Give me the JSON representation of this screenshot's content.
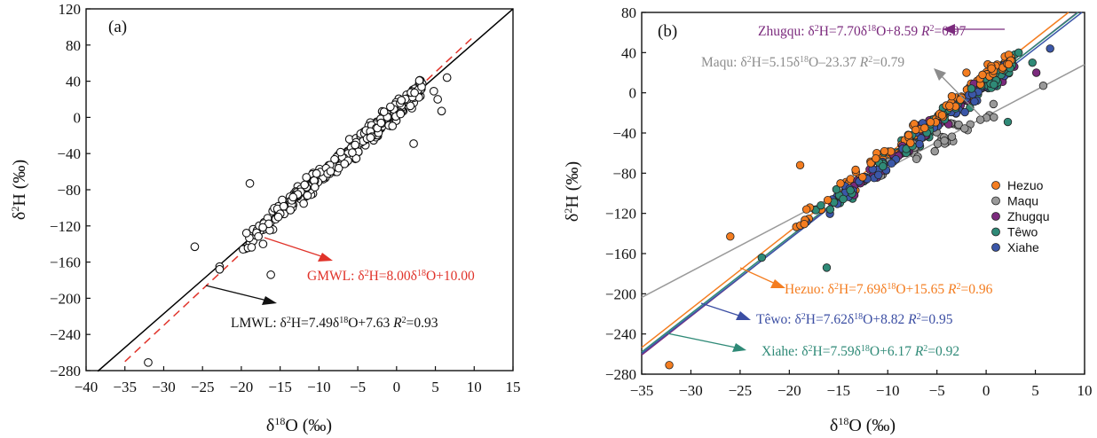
{
  "chart_data": [
    {
      "panel": "(a)",
      "type": "scatter",
      "xlabel": "δ18O (‰)",
      "ylabel": "δ2H (‰)",
      "xlim": [
        -40,
        15
      ],
      "ylim": [
        -280,
        120
      ],
      "xticks": [
        -40,
        -35,
        -30,
        -25,
        -20,
        -15,
        -10,
        -5,
        0,
        5,
        10,
        15
      ],
      "yticks": [
        -280,
        -240,
        -200,
        -160,
        -120,
        -80,
        -40,
        0,
        40,
        80,
        120
      ],
      "grid": false,
      "marker": "open-circle",
      "lines": [
        {
          "key": "gmwl",
          "slope": 8.0,
          "intercept": 10.0,
          "style": "dashed",
          "color": "#e0332a",
          "x_range": [
            -35,
            10
          ]
        },
        {
          "key": "lmwl",
          "slope": 7.49,
          "intercept": 7.63,
          "style": "solid",
          "color": "#000000",
          "x_range": [
            -38.5,
            15
          ]
        }
      ],
      "annotations": {
        "gmwl": {
          "label": "GMWL: ",
          "d": "δ",
          "two": "2",
          "h": "H=8.00",
          "eighteen": "18",
          "rest": "O+10.00",
          "r2": "",
          "color": "#e0332a"
        },
        "lmwl": {
          "label": "LMWL: ",
          "d": "δ",
          "two": "2",
          "h": "H=7.49",
          "eighteen": "18",
          "rest": "O+7.63 ",
          "r": "R",
          "sq": "2",
          "r2": "=0.93",
          "color": "#111111"
        }
      },
      "outliers": [
        [
          -32,
          -271
        ],
        [
          -26,
          -143
        ],
        [
          -22.8,
          -165
        ],
        [
          -22.8,
          -168
        ],
        [
          -18.9,
          -73
        ],
        [
          -16.2,
          -174
        ],
        [
          2.2,
          -29
        ],
        [
          4.8,
          29
        ],
        [
          5.3,
          20
        ],
        [
          5.8,
          7
        ],
        [
          6.5,
          44
        ],
        [
          -17.2,
          -140
        ]
      ],
      "trend": {
        "slope": 7.5,
        "intercept": 8,
        "x_range": [
          -20,
          3.5
        ],
        "n": 330,
        "spread_y": 8
      }
    },
    {
      "panel": "(b)",
      "type": "scatter",
      "xlabel": "δ18O (‰)",
      "ylabel": "δ2H (‰)",
      "xlim": [
        -35,
        10
      ],
      "ylim": [
        -280,
        80
      ],
      "xticks": [
        -35,
        -30,
        -25,
        -20,
        -15,
        -10,
        -5,
        0,
        5,
        10
      ],
      "yticks": [
        -280,
        -240,
        -200,
        -160,
        -120,
        -80,
        -40,
        0,
        40,
        80
      ],
      "grid": false,
      "legend_position": "right-middle",
      "series": [
        {
          "name": "Hezuo",
          "color": "#f47d20",
          "slope": 7.69,
          "intercept": 15.65,
          "n": 110,
          "x_range": [
            -20,
            3
          ]
        },
        {
          "name": "Maqu",
          "color": "#9a9a9a",
          "slope": 5.15,
          "intercept": -23.37,
          "n": 40,
          "x_range": [
            -13,
            1
          ]
        },
        {
          "name": "Zhugqu",
          "color": "#7b2a7d",
          "slope": 7.7,
          "intercept": 8.59,
          "n": 60,
          "x_range": [
            -16,
            3
          ]
        },
        {
          "name": "Têwo",
          "color": "#2f8a77",
          "slope": 7.62,
          "intercept": 8.82,
          "n": 110,
          "x_range": [
            -19,
            3
          ]
        },
        {
          "name": "Xiahe",
          "color": "#3b57a8",
          "slope": 7.59,
          "intercept": 6.17,
          "n": 60,
          "x_range": [
            -19,
            2.5
          ]
        }
      ],
      "outliers": [
        {
          "series": 0,
          "x": -32.2,
          "y": -271
        },
        {
          "series": 0,
          "x": -26,
          "y": -143
        },
        {
          "series": 0,
          "x": -18.9,
          "y": -72
        },
        {
          "series": 0,
          "x": -2,
          "y": 20
        },
        {
          "series": 1,
          "x": 5.8,
          "y": 7
        },
        {
          "series": 3,
          "x": 2.2,
          "y": -29
        },
        {
          "series": 3,
          "x": -16.2,
          "y": -174
        },
        {
          "series": 3,
          "x": -22.8,
          "y": -164
        },
        {
          "series": 3,
          "x": 4.7,
          "y": 30
        },
        {
          "series": 2,
          "x": 5.1,
          "y": 20
        },
        {
          "series": 4,
          "x": 6.5,
          "y": 44
        },
        {
          "series": 3,
          "x": 3.3,
          "y": 40
        }
      ],
      "annotations": [
        {
          "name": "Zhugqu",
          "text": "Zhugqu: ",
          "d": "δ",
          "two": "2",
          "h": "H=7.70",
          "eighteen": "18",
          "rest": "O+8.59 ",
          "r": "R",
          "sq": "2",
          "r2": "=0.97",
          "color": "#7b2a7d"
        },
        {
          "name": "Maqu",
          "text": "Maqu: ",
          "d": "δ",
          "two": "2",
          "h": "H=5.15",
          "eighteen": "18",
          "rest": "O–23.37 ",
          "r": "R",
          "sq": "2",
          "r2": "=0.79",
          "color": "#8c8c8c"
        },
        {
          "name": "Hezuo",
          "text": "Hezuo: ",
          "d": "δ",
          "two": "2",
          "h": "H=7.69",
          "eighteen": "18",
          "rest": "O+15.65 ",
          "r": "R",
          "sq": "2",
          "r2": "=0.96",
          "color": "#f47d20"
        },
        {
          "name": "Têwo",
          "text": "Têwo: ",
          "d": "δ",
          "two": "2",
          "h": "H=7.62",
          "eighteen": "18",
          "rest": "O+8.82 ",
          "r": "R",
          "sq": "2",
          "r2": "=0.95",
          "color": "#3b4ea3"
        },
        {
          "name": "Xiahe",
          "text": "Xiahe: ",
          "d": "δ",
          "two": "2",
          "h": "H=7.59",
          "eighteen": "18",
          "rest": "O+6.17 ",
          "r": "R",
          "sq": "2",
          "r2": "=0.92",
          "color": "#2f8a77"
        }
      ]
    }
  ]
}
